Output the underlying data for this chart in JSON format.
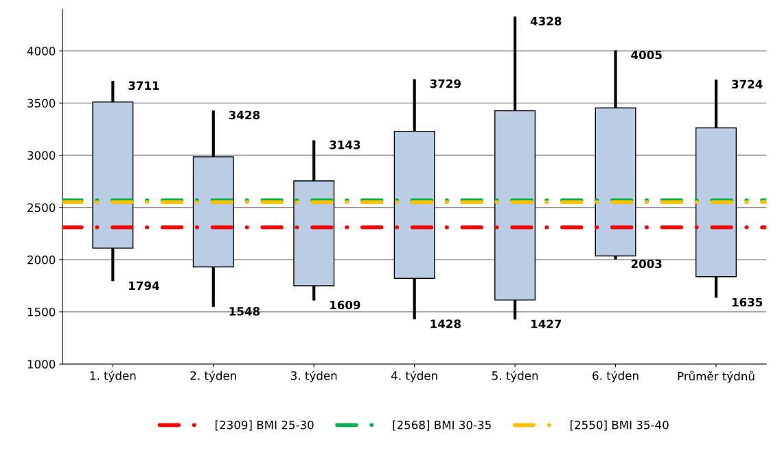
{
  "chart_data": {
    "type": "candlestick",
    "categories": [
      "1. týden",
      "2. týden",
      "3. týden",
      "4. týden",
      "5. týden",
      "6. týden",
      "Průměr týdnů"
    ],
    "ohlc": [
      [
        2110,
        3711,
        1794,
        3510
      ],
      [
        1930,
        3428,
        1548,
        2985
      ],
      [
        1750,
        3143,
        1609,
        2754
      ],
      [
        1820,
        3729,
        1428,
        3229
      ],
      [
        1613,
        4328,
        1427,
        3426
      ],
      [
        2035,
        4005,
        2003,
        3453
      ],
      [
        1837,
        3724,
        1635,
        3262
      ]
    ],
    "color": "#b9cde5",
    "value_labels": [
      [
        "3711",
        "1794"
      ],
      [
        "3428",
        "1548"
      ],
      [
        "3143",
        "1609"
      ],
      [
        "3729",
        "1428"
      ],
      [
        "4328",
        "1427"
      ],
      [
        "4005",
        "2003"
      ],
      [
        "3724",
        "1635"
      ]
    ],
    "ylim": [
      1000,
      4400
    ],
    "yticks": [
      1000,
      1500,
      2000,
      2500,
      3000,
      3500,
      4000
    ],
    "grid": "y",
    "legend": "bottom",
    "ref_lines": [
      {
        "axis": "y",
        "value": 2309,
        "label": "[2309] BMI 25-30",
        "color": "#ff0000",
        "line_style": "dashdot"
      },
      {
        "axis": "y",
        "value": 2568,
        "label": "[2568] BMI 30-35",
        "color": "#00b050",
        "line_style": "dashdot"
      },
      {
        "axis": "y",
        "value": 2550,
        "label": "[2550] BMI 35-40",
        "color": "#ffc000",
        "line_style": "dashdot"
      }
    ]
  }
}
